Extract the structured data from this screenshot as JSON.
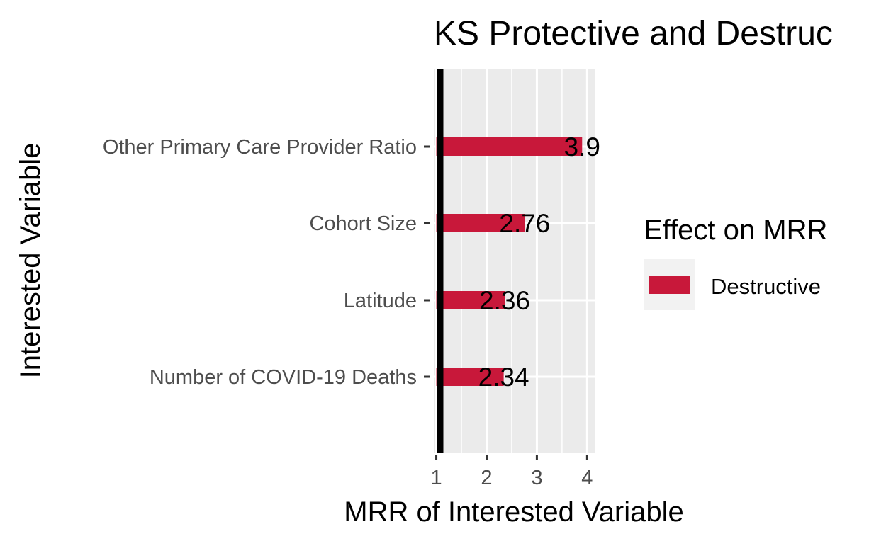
{
  "chart_data": {
    "type": "bar",
    "orientation": "horizontal",
    "title": "KS Protective and Destruc",
    "xlabel": "MRR of Interested Variable",
    "ylabel": "Interested Variable",
    "xlim": [
      0.95,
      4.15
    ],
    "x_ticks": [
      1,
      2,
      3,
      4
    ],
    "baseline": 1,
    "grid": true,
    "categories": [
      "Other Primary Care Provider Ratio",
      "Cohort Size",
      "Latitude",
      "Number of COVID-19 Deaths"
    ],
    "series": [
      {
        "name": "Destructive",
        "color": "#c8183a",
        "values": [
          3.9,
          2.76,
          2.36,
          2.34
        ],
        "labels": [
          "3.9",
          "2.76",
          "2.36",
          "2.34"
        ]
      }
    ],
    "legend": {
      "title": "Effect on MRR",
      "position": "right"
    },
    "colors": {
      "panel": "#ebebeb",
      "grid": "#ffffff",
      "bar": "#c8183a",
      "tick_text": "#4d4d4d",
      "baseline": "#000000"
    }
  }
}
